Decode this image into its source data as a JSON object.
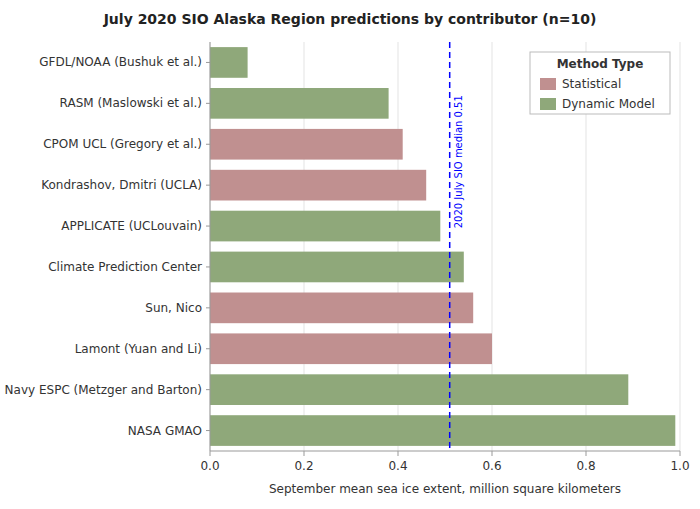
{
  "chart_data": {
    "type": "bar",
    "orientation": "horizontal",
    "title": "July 2020 SIO Alaska Region predictions by contributor (n=10)",
    "x_label": "September mean sea ice extent, million square kilometers",
    "categories": [
      "GFDL/NOAA (Bushuk et al.)",
      "RASM (Maslowski et al.)",
      "CPOM UCL (Gregory et al.)",
      "Kondrashov, Dmitri  (UCLA)",
      "APPLICATE (UCLouvain)",
      "Climate Prediction Center",
      "Sun, Nico",
      "Lamont (Yuan and Li)",
      "Navy ESPC (Metzger and Barton)",
      "NASA GMAO"
    ],
    "series": [
      {
        "name": "Statistical",
        "color": "#c09090",
        "values": [
          null,
          null,
          0.41,
          0.46,
          null,
          null,
          0.56,
          0.6,
          null,
          null
        ]
      },
      {
        "name": "Dynamic Model",
        "color": "#8fa87a",
        "values": [
          0.08,
          0.38,
          null,
          null,
          0.49,
          0.54,
          null,
          null,
          0.89,
          0.99
        ]
      }
    ],
    "stacked": true,
    "legend": "upper right",
    "legend_title": "Method Type",
    "xlim": [
      0,
      1.0
    ],
    "xticks": [
      {
        "value": 0.0,
        "label": "0.0"
      },
      {
        "value": 0.2,
        "label": "0.2"
      },
      {
        "value": 0.4,
        "label": "0.4"
      },
      {
        "value": 0.6,
        "label": "0.6"
      },
      {
        "value": 0.8,
        "label": "0.8"
      },
      {
        "value": 1.0,
        "label": "1.0"
      }
    ],
    "grid": true,
    "annotations": [
      {
        "type": "vline",
        "x": 0.51,
        "text": "2020 July SIO median 0.51",
        "color": "blue",
        "line_style": "dashed"
      }
    ]
  }
}
